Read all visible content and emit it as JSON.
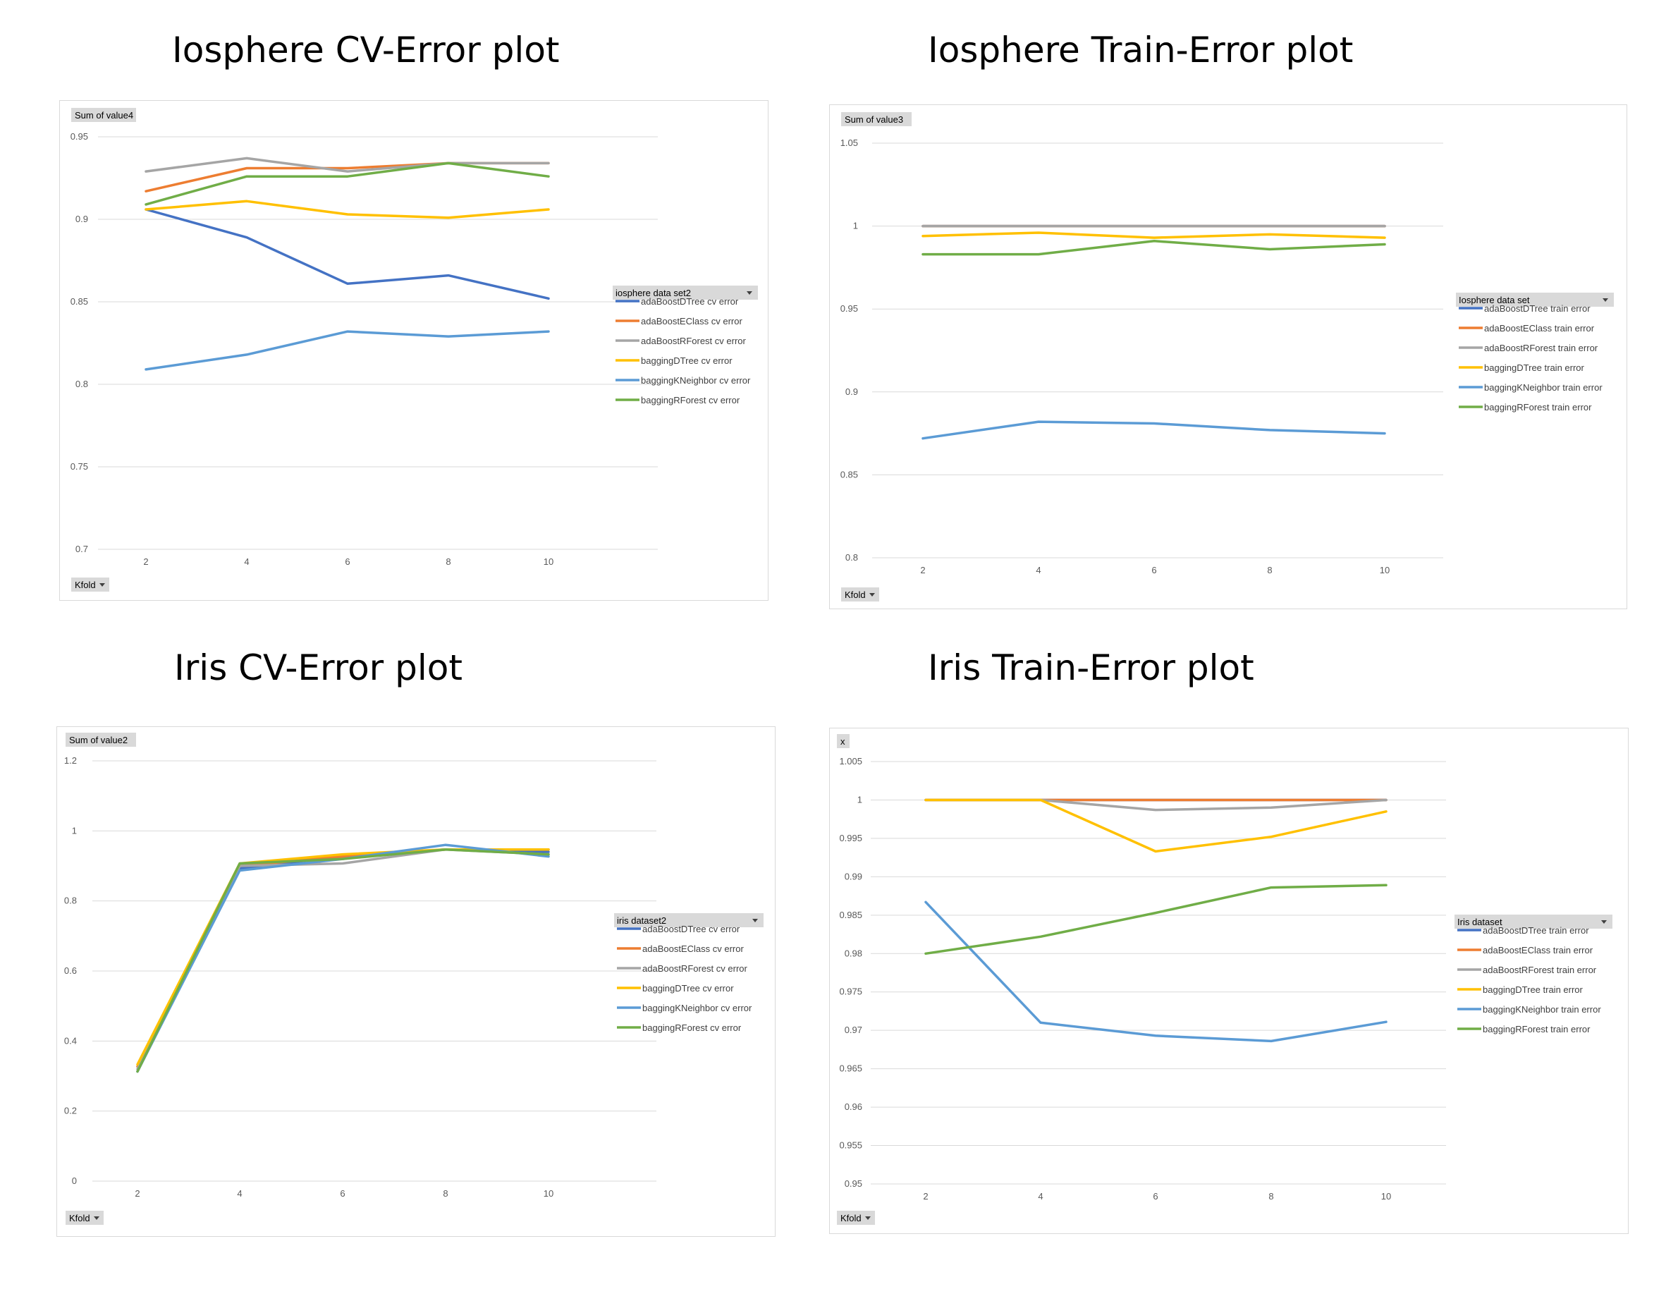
{
  "headings": [
    "Iosphere CV-Error plot",
    "Iosphere Train-Error plot",
    "Iris CV-Error plot",
    "Iris Train-Error plot"
  ],
  "colors": {
    "adaBoostDTree": "#4472c4",
    "adaBoostEClass": "#ed7d31",
    "adaBoostRForest": "#a5a5a5",
    "baggingDTree": "#ffc000",
    "baggingKNeighbor": "#5b9bd5",
    "baggingRForest": "#70ad47"
  },
  "chart_data": [
    {
      "type": "line",
      "title": "Iosphere CV-Error plot",
      "field_button": "Sum of value4",
      "axis_button": "Kfold",
      "legend_title": "iosphere data set2",
      "x": [
        2,
        4,
        6,
        8,
        10
      ],
      "ylim": [
        0.7,
        0.95
      ],
      "yticks": [
        0.7,
        0.75,
        0.8,
        0.85,
        0.9,
        0.95
      ],
      "ytick_labels": [
        "0.7",
        "0.75",
        "0.8",
        "0.85",
        "0.9",
        "0.95"
      ],
      "grid": true,
      "legend_position": "right",
      "series": [
        {
          "name": "adaBoostDTree cv error",
          "key": "adaBoostDTree",
          "values": [
            0.906,
            0.889,
            0.861,
            0.866,
            0.852
          ]
        },
        {
          "name": "adaBoostEClass cv error",
          "key": "adaBoostEClass",
          "values": [
            0.917,
            0.931,
            0.931,
            0.934,
            0.934
          ]
        },
        {
          "name": "adaBoostRForest cv error",
          "key": "adaBoostRForest",
          "values": [
            0.929,
            0.937,
            0.929,
            0.934,
            0.934
          ]
        },
        {
          "name": "baggingDTree cv error",
          "key": "baggingDTree",
          "values": [
            0.906,
            0.911,
            0.903,
            0.901,
            0.906
          ]
        },
        {
          "name": "baggingKNeighbor cv error",
          "key": "baggingKNeighbor",
          "values": [
            0.809,
            0.818,
            0.832,
            0.829,
            0.832
          ]
        },
        {
          "name": "baggingRForest cv error",
          "key": "baggingRForest",
          "values": [
            0.909,
            0.926,
            0.926,
            0.934,
            0.926
          ]
        }
      ]
    },
    {
      "type": "line",
      "title": "Iosphere Train-Error plot",
      "field_button": "Sum of value3",
      "axis_button": "Kfold",
      "legend_title": "Iosphere data set",
      "x": [
        2,
        4,
        6,
        8,
        10
      ],
      "ylim": [
        0.8,
        1.05
      ],
      "yticks": [
        0.8,
        0.85,
        0.9,
        0.95,
        1.0,
        1.05
      ],
      "ytick_labels": [
        "0.8",
        "0.85",
        "0.9",
        "0.95",
        "1",
        "1.05"
      ],
      "grid": true,
      "legend_position": "right",
      "series": [
        {
          "name": "adaBoostDTree train error",
          "key": "adaBoostDTree",
          "values": [
            1.0,
            1.0,
            1.0,
            1.0,
            1.0
          ]
        },
        {
          "name": "adaBoostEClass train error",
          "key": "adaBoostEClass",
          "values": [
            1.0,
            1.0,
            1.0,
            1.0,
            1.0
          ]
        },
        {
          "name": "adaBoostRForest train error",
          "key": "adaBoostRForest",
          "values": [
            1.0,
            1.0,
            1.0,
            1.0,
            1.0
          ]
        },
        {
          "name": "baggingDTree train error",
          "key": "baggingDTree",
          "values": [
            0.994,
            0.996,
            0.993,
            0.995,
            0.993
          ]
        },
        {
          "name": "baggingKNeighbor train error",
          "key": "baggingKNeighbor",
          "values": [
            0.872,
            0.882,
            0.881,
            0.877,
            0.875
          ]
        },
        {
          "name": "baggingRForest train error",
          "key": "baggingRForest",
          "values": [
            0.983,
            0.983,
            0.991,
            0.986,
            0.989
          ]
        }
      ]
    },
    {
      "type": "line",
      "title": "Iris CV-Error plot",
      "field_button": "Sum of value2",
      "axis_button": "Kfold",
      "legend_title": "iris dataset2",
      "x": [
        2,
        4,
        6,
        8,
        10
      ],
      "ylim": [
        0,
        1.2
      ],
      "yticks": [
        0,
        0.2,
        0.4,
        0.6,
        0.8,
        1.0,
        1.2
      ],
      "ytick_labels": [
        "0",
        "0.2",
        "0.4",
        "0.6",
        "0.8",
        "1",
        "1.2"
      ],
      "grid": true,
      "legend_position": "right",
      "series": [
        {
          "name": "adaBoostDTree cv error",
          "key": "adaBoostDTree",
          "values": [
            0.313,
            0.893,
            0.927,
            0.947,
            0.94
          ]
        },
        {
          "name": "adaBoostEClass cv error",
          "key": "adaBoostEClass",
          "values": [
            0.327,
            0.9,
            0.927,
            0.947,
            0.947
          ]
        },
        {
          "name": "adaBoostRForest cv error",
          "key": "adaBoostRForest",
          "values": [
            0.32,
            0.9,
            0.907,
            0.947,
            0.933
          ]
        },
        {
          "name": "baggingDTree cv error",
          "key": "baggingDTree",
          "values": [
            0.333,
            0.907,
            0.933,
            0.947,
            0.947
          ]
        },
        {
          "name": "baggingKNeighbor cv error",
          "key": "baggingKNeighbor",
          "values": [
            0.313,
            0.887,
            0.92,
            0.96,
            0.927
          ]
        },
        {
          "name": "baggingRForest cv error",
          "key": "baggingRForest",
          "values": [
            0.313,
            0.907,
            0.92,
            0.947,
            0.933
          ]
        }
      ]
    },
    {
      "type": "line",
      "title": "Iris Train-Error plot",
      "field_button": "x",
      "axis_button": "Kfold",
      "legend_title": "Iris dataset",
      "x": [
        2,
        4,
        6,
        8,
        10
      ],
      "ylim": [
        0.95,
        1.005
      ],
      "yticks": [
        0.95,
        0.955,
        0.96,
        0.965,
        0.97,
        0.975,
        0.98,
        0.985,
        0.99,
        0.995,
        1.0,
        1.005
      ],
      "ytick_labels": [
        "0.95",
        "0.955",
        "0.96",
        "0.965",
        "0.97",
        "0.975",
        "0.98",
        "0.985",
        "0.99",
        "0.995",
        "1",
        "1.005"
      ],
      "grid": true,
      "legend_position": "right",
      "series": [
        {
          "name": "adaBoostDTree train error",
          "key": "adaBoostDTree",
          "values": [
            1.0,
            1.0,
            1.0,
            1.0,
            1.0
          ]
        },
        {
          "name": "adaBoostEClass train error",
          "key": "adaBoostEClass",
          "values": [
            1.0,
            1.0,
            1.0,
            1.0,
            1.0
          ]
        },
        {
          "name": "adaBoostRForest train error",
          "key": "adaBoostRForest",
          "values": [
            1.0,
            1.0,
            0.9987,
            0.999,
            1.0
          ]
        },
        {
          "name": "baggingDTree train error",
          "key": "baggingDTree",
          "values": [
            1.0,
            1.0,
            0.9933,
            0.9952,
            0.9985
          ]
        },
        {
          "name": "baggingKNeighbor train error",
          "key": "baggingKNeighbor",
          "values": [
            0.9867,
            0.971,
            0.9693,
            0.9686,
            0.9711
          ]
        },
        {
          "name": "baggingRForest train error",
          "key": "baggingRForest",
          "values": [
            0.98,
            0.9822,
            0.9853,
            0.9886,
            0.9889
          ]
        }
      ]
    }
  ]
}
